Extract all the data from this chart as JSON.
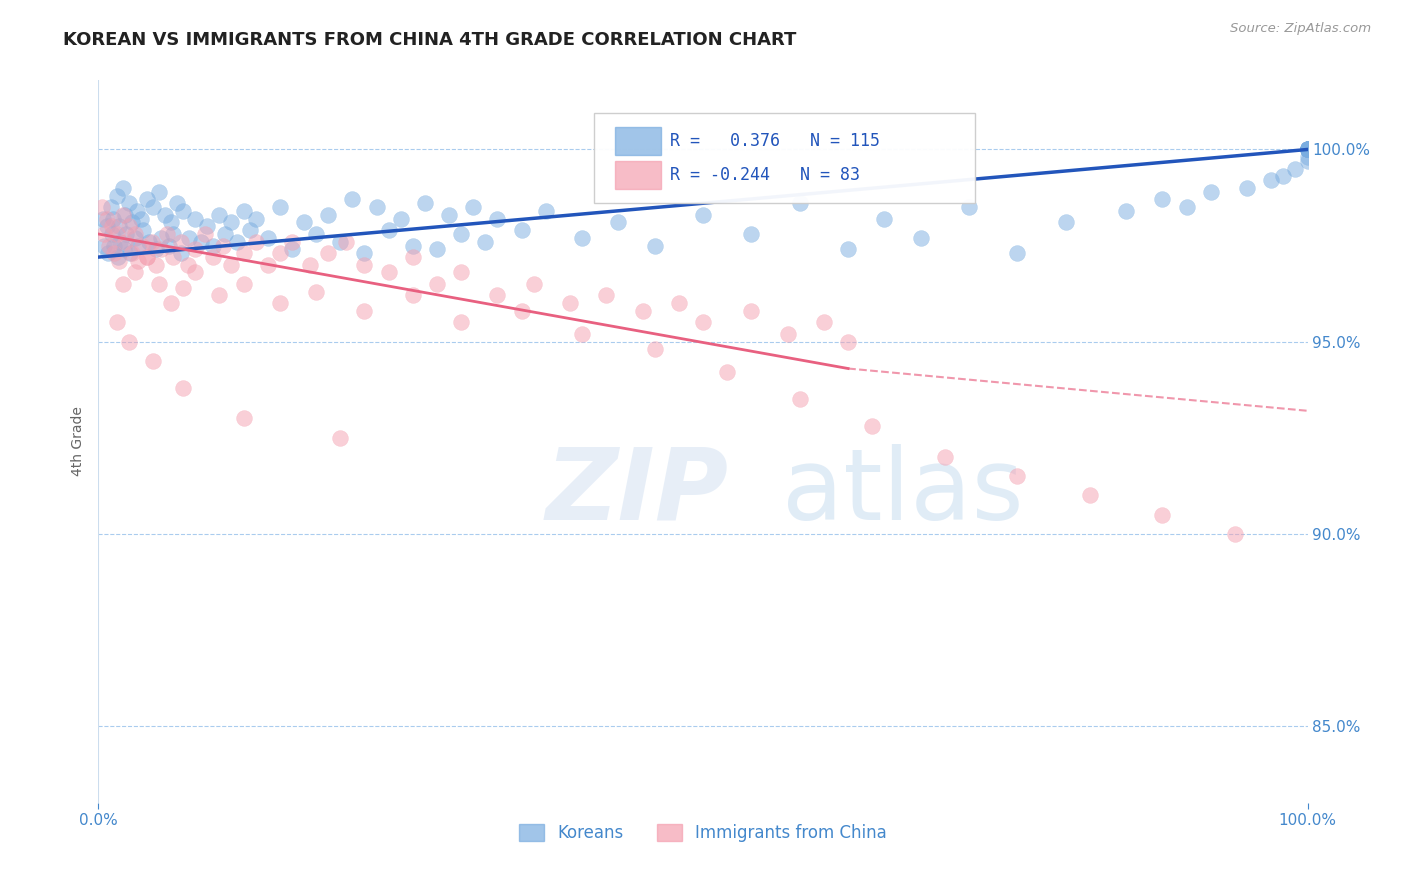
{
  "title": "KOREAN VS IMMIGRANTS FROM CHINA 4TH GRADE CORRELATION CHART",
  "source": "Source: ZipAtlas.com",
  "ylabel": "4th Grade",
  "xmin": 0.0,
  "xmax": 100.0,
  "ymin": 83.0,
  "ymax": 101.8,
  "korean_R": 0.376,
  "korean_N": 115,
  "china_R": -0.244,
  "china_N": 83,
  "korean_color": "#7aade0",
  "china_color": "#f4a0b0",
  "korean_line_color": "#2255bb",
  "china_line_color": "#e86080",
  "legend_label_korean": "Koreans",
  "legend_label_china": "Immigrants from China",
  "yticks": [
    85.0,
    90.0,
    95.0,
    100.0
  ],
  "korean_trend_x0": 0.0,
  "korean_trend_y0": 97.2,
  "korean_trend_x1": 100.0,
  "korean_trend_y1": 100.0,
  "china_trend_x0": 0.0,
  "china_trend_y0": 97.8,
  "china_trend_xsolid": 62.0,
  "china_trend_ysolid": 94.3,
  "china_trend_x1": 100.0,
  "china_trend_y1": 93.2,
  "korean_scatter_x": [
    0.4,
    0.5,
    0.7,
    0.8,
    1.0,
    1.1,
    1.2,
    1.3,
    1.5,
    1.6,
    1.7,
    1.8,
    2.0,
    2.1,
    2.2,
    2.3,
    2.5,
    2.6,
    2.8,
    3.0,
    3.2,
    3.3,
    3.5,
    3.7,
    4.0,
    4.2,
    4.5,
    4.8,
    5.0,
    5.2,
    5.5,
    5.8,
    6.0,
    6.2,
    6.5,
    6.8,
    7.0,
    7.5,
    8.0,
    8.5,
    9.0,
    9.5,
    10.0,
    10.5,
    11.0,
    11.5,
    12.0,
    12.5,
    13.0,
    14.0,
    15.0,
    16.0,
    17.0,
    18.0,
    19.0,
    20.0,
    21.0,
    22.0,
    23.0,
    24.0,
    25.0,
    26.0,
    27.0,
    28.0,
    29.0,
    30.0,
    31.0,
    32.0,
    33.0,
    35.0,
    37.0,
    40.0,
    43.0,
    46.0,
    50.0,
    54.0,
    58.0,
    62.0,
    65.0,
    68.0,
    72.0,
    76.0,
    80.0,
    85.0,
    88.0,
    90.0,
    92.0,
    95.0,
    97.0,
    98.0,
    99.0,
    100.0,
    100.0,
    100.0,
    100.0,
    100.0,
    100.0,
    100.0,
    100.0,
    100.0,
    100.0,
    100.0,
    100.0,
    100.0,
    100.0,
    100.0,
    100.0,
    100.0,
    100.0,
    100.0,
    100.0,
    100.0,
    100.0,
    100.0,
    100.0
  ],
  "korean_scatter_y": [
    98.2,
    97.5,
    98.0,
    97.3,
    98.5,
    97.8,
    98.2,
    97.5,
    98.8,
    97.2,
    98.0,
    97.6,
    99.0,
    97.4,
    98.3,
    97.8,
    98.6,
    97.3,
    98.1,
    97.7,
    98.4,
    97.5,
    98.2,
    97.9,
    98.7,
    97.6,
    98.5,
    97.4,
    98.9,
    97.7,
    98.3,
    97.5,
    98.1,
    97.8,
    98.6,
    97.3,
    98.4,
    97.7,
    98.2,
    97.6,
    98.0,
    97.5,
    98.3,
    97.8,
    98.1,
    97.6,
    98.4,
    97.9,
    98.2,
    97.7,
    98.5,
    97.4,
    98.1,
    97.8,
    98.3,
    97.6,
    98.7,
    97.3,
    98.5,
    97.9,
    98.2,
    97.5,
    98.6,
    97.4,
    98.3,
    97.8,
    98.5,
    97.6,
    98.2,
    97.9,
    98.4,
    97.7,
    98.1,
    97.5,
    98.3,
    97.8,
    98.6,
    97.4,
    98.2,
    97.7,
    98.5,
    97.3,
    98.1,
    98.4,
    98.7,
    98.5,
    98.9,
    99.0,
    99.2,
    99.3,
    99.5,
    99.7,
    99.8,
    100.0,
    100.0,
    100.0,
    100.0,
    100.0,
    100.0,
    100.0,
    100.0,
    100.0,
    100.0,
    100.0,
    100.0,
    100.0,
    100.0,
    100.0,
    100.0,
    100.0,
    100.0,
    100.0,
    100.0,
    100.0,
    100.0
  ],
  "china_scatter_x": [
    0.3,
    0.5,
    0.7,
    0.9,
    1.1,
    1.3,
    1.5,
    1.7,
    2.0,
    2.2,
    2.5,
    2.8,
    3.0,
    3.3,
    3.6,
    4.0,
    4.4,
    4.8,
    5.2,
    5.7,
    6.2,
    6.8,
    7.4,
    8.0,
    8.8,
    9.5,
    10.3,
    11.0,
    12.0,
    13.0,
    14.0,
    15.0,
    16.0,
    17.5,
    19.0,
    20.5,
    22.0,
    24.0,
    26.0,
    28.0,
    30.0,
    33.0,
    36.0,
    39.0,
    42.0,
    45.0,
    48.0,
    50.0,
    54.0,
    57.0,
    60.0,
    62.0,
    2.0,
    3.0,
    4.0,
    5.0,
    6.0,
    7.0,
    8.0,
    10.0,
    12.0,
    15.0,
    18.0,
    22.0,
    26.0,
    30.0,
    35.0,
    40.0,
    46.0,
    52.0,
    58.0,
    64.0,
    70.0,
    76.0,
    82.0,
    88.0,
    94.0,
    1.5,
    2.5,
    4.5,
    7.0,
    12.0,
    20.0
  ],
  "china_scatter_y": [
    98.5,
    97.8,
    98.2,
    97.5,
    98.0,
    97.3,
    97.8,
    97.1,
    98.3,
    97.6,
    98.0,
    97.3,
    97.8,
    97.1,
    97.5,
    97.2,
    97.6,
    97.0,
    97.4,
    97.8,
    97.2,
    97.6,
    97.0,
    97.4,
    97.8,
    97.2,
    97.5,
    97.0,
    97.3,
    97.6,
    97.0,
    97.3,
    97.6,
    97.0,
    97.3,
    97.6,
    97.0,
    96.8,
    97.2,
    96.5,
    96.8,
    96.2,
    96.5,
    96.0,
    96.2,
    95.8,
    96.0,
    95.5,
    95.8,
    95.2,
    95.5,
    95.0,
    96.5,
    96.8,
    97.2,
    96.5,
    96.0,
    96.4,
    96.8,
    96.2,
    96.5,
    96.0,
    96.3,
    95.8,
    96.2,
    95.5,
    95.8,
    95.2,
    94.8,
    94.2,
    93.5,
    92.8,
    92.0,
    91.5,
    91.0,
    90.5,
    90.0,
    95.5,
    95.0,
    94.5,
    93.8,
    93.0,
    92.5
  ]
}
